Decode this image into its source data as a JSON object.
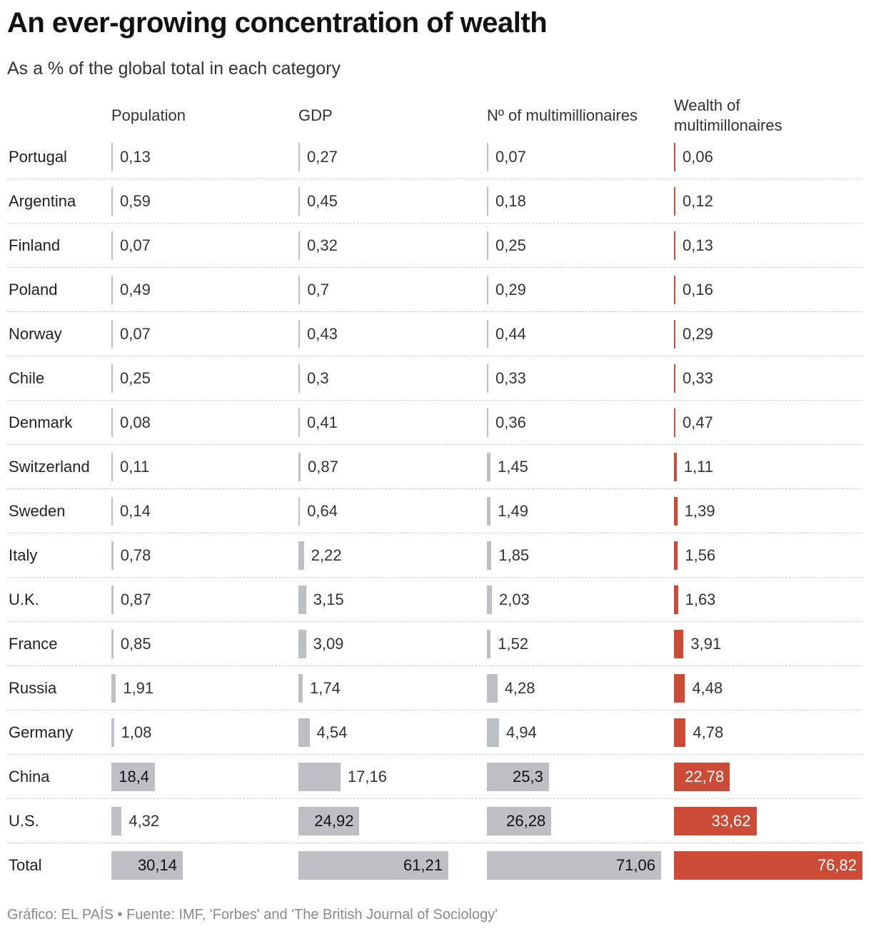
{
  "header": {
    "title": "An ever-growing concentration of wealth",
    "subtitle": "As a % of the global total in each category"
  },
  "footer": {
    "credit": "Gráfico: EL PAÍS",
    "separator": " • ",
    "source": "Fuente: IMF, 'Forbes' and 'The British Journal of Sociology'"
  },
  "colors": {
    "gray_bar": "#bcc0c4",
    "red_bar": "#cc4b37",
    "highlight_column": "Wealth of multimillonaires"
  },
  "chart_data": {
    "type": "table",
    "title": "An ever-growing concentration of wealth",
    "subtitle": "As a % of the global total in each category",
    "unit": "% of global total",
    "columns": [
      "Population",
      "GDP",
      "Nº of multimillionaires",
      "Wealth of multimillonaires"
    ],
    "rows": [
      {
        "label": "Portugal",
        "values": [
          0.13,
          0.27,
          0.07,
          0.06
        ],
        "display": [
          "0,13",
          "0,27",
          "0,07",
          "0,06"
        ]
      },
      {
        "label": "Argentina",
        "values": [
          0.59,
          0.45,
          0.18,
          0.12
        ],
        "display": [
          "0,59",
          "0,45",
          "0,18",
          "0,12"
        ]
      },
      {
        "label": "Finland",
        "values": [
          0.07,
          0.32,
          0.25,
          0.13
        ],
        "display": [
          "0,07",
          "0,32",
          "0,25",
          "0,13"
        ]
      },
      {
        "label": "Poland",
        "values": [
          0.49,
          0.7,
          0.29,
          0.16
        ],
        "display": [
          "0,49",
          "0,7",
          "0,29",
          "0,16"
        ]
      },
      {
        "label": "Norway",
        "values": [
          0.07,
          0.43,
          0.44,
          0.29
        ],
        "display": [
          "0,07",
          "0,43",
          "0,44",
          "0,29"
        ]
      },
      {
        "label": "Chile",
        "values": [
          0.25,
          0.3,
          0.33,
          0.33
        ],
        "display": [
          "0,25",
          "0,3",
          "0,33",
          "0,33"
        ]
      },
      {
        "label": "Denmark",
        "values": [
          0.08,
          0.41,
          0.36,
          0.47
        ],
        "display": [
          "0,08",
          "0,41",
          "0,36",
          "0,47"
        ]
      },
      {
        "label": "Switzerland",
        "values": [
          0.11,
          0.87,
          1.45,
          1.11
        ],
        "display": [
          "0,11",
          "0,87",
          "1,45",
          "1,11"
        ]
      },
      {
        "label": "Sweden",
        "values": [
          0.14,
          0.64,
          1.49,
          1.39
        ],
        "display": [
          "0,14",
          "0,64",
          "1,49",
          "1,39"
        ]
      },
      {
        "label": "Italy",
        "values": [
          0.78,
          2.22,
          1.85,
          1.56
        ],
        "display": [
          "0,78",
          "2,22",
          "1,85",
          "1,56"
        ]
      },
      {
        "label": "U.K.",
        "values": [
          0.87,
          3.15,
          2.03,
          1.63
        ],
        "display": [
          "0,87",
          "3,15",
          "2,03",
          "1,63"
        ]
      },
      {
        "label": "France",
        "values": [
          0.85,
          3.09,
          1.52,
          3.91
        ],
        "display": [
          "0,85",
          "3,09",
          "1,52",
          "3,91"
        ]
      },
      {
        "label": "Russia",
        "values": [
          1.91,
          1.74,
          4.28,
          4.48
        ],
        "display": [
          "1,91",
          "1,74",
          "4,28",
          "4,48"
        ]
      },
      {
        "label": "Germany",
        "values": [
          1.08,
          4.54,
          4.94,
          4.78
        ],
        "display": [
          "1,08",
          "4,54",
          "4,94",
          "4,78"
        ]
      },
      {
        "label": "China",
        "values": [
          18.4,
          17.16,
          25.3,
          22.78
        ],
        "display": [
          "18,4",
          "17,16",
          "25,3",
          "22,78"
        ]
      },
      {
        "label": "U.S.",
        "values": [
          4.32,
          24.92,
          26.28,
          33.62
        ],
        "display": [
          "4,32",
          "24,92",
          "26,28",
          "33,62"
        ]
      },
      {
        "label": "Total",
        "values": [
          30.14,
          61.21,
          71.06,
          76.82
        ],
        "display": [
          "30,14",
          "61,21",
          "71,06",
          "76,82"
        ]
      }
    ]
  }
}
